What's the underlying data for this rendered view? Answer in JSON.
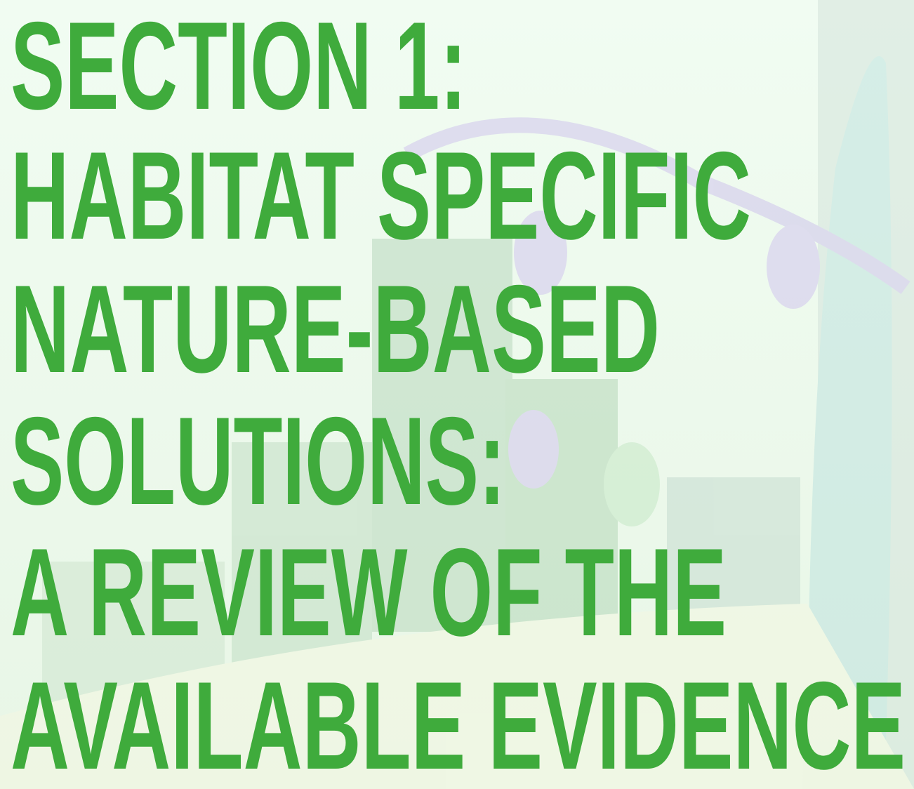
{
  "title_lines": [
    "SECTION 1:",
    "HABITAT SPECIFIC",
    "NATURE-BASED",
    "SOLUTIONS:",
    "A REVIEW OF THE",
    "AVAILABLE EVIDENCE"
  ]
}
